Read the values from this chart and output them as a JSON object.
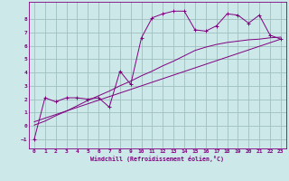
{
  "xlabel": "Windchill (Refroidissement éolien,°C)",
  "background_color": "#cce8e8",
  "grid_color": "#9fbfbf",
  "line_color": "#800080",
  "xlim": [
    -0.5,
    23.5
  ],
  "ylim": [
    -1.7,
    9.3
  ],
  "xticks": [
    0,
    1,
    2,
    3,
    4,
    5,
    6,
    7,
    8,
    9,
    10,
    11,
    12,
    13,
    14,
    15,
    16,
    17,
    18,
    19,
    20,
    21,
    22,
    23
  ],
  "yticks": [
    -1,
    0,
    1,
    2,
    3,
    4,
    5,
    6,
    7,
    8
  ],
  "series1_x": [
    0,
    1,
    2,
    3,
    4,
    5,
    6,
    7,
    8,
    9,
    10,
    11,
    12,
    13,
    14,
    15,
    16,
    17,
    18,
    19,
    20,
    21,
    22,
    23
  ],
  "series1_y": [
    -1.0,
    2.1,
    1.8,
    2.1,
    2.1,
    2.0,
    2.1,
    1.4,
    4.1,
    3.1,
    6.6,
    8.1,
    8.4,
    8.6,
    8.6,
    7.2,
    7.1,
    7.5,
    8.4,
    8.3,
    7.7,
    8.3,
    6.8,
    6.5
  ],
  "series2_x": [
    0,
    1,
    2,
    3,
    4,
    5,
    6,
    7,
    8,
    9,
    10,
    11,
    12,
    13,
    14,
    15,
    16,
    17,
    18,
    19,
    20,
    21,
    22,
    23
  ],
  "series2_y": [
    0.05,
    0.35,
    0.75,
    1.1,
    1.5,
    1.9,
    2.25,
    2.6,
    3.0,
    3.35,
    3.75,
    4.1,
    4.5,
    4.85,
    5.25,
    5.65,
    5.9,
    6.1,
    6.25,
    6.35,
    6.45,
    6.5,
    6.6,
    6.65
  ],
  "series3_x": [
    0,
    23
  ],
  "series3_y": [
    0.3,
    6.5
  ]
}
